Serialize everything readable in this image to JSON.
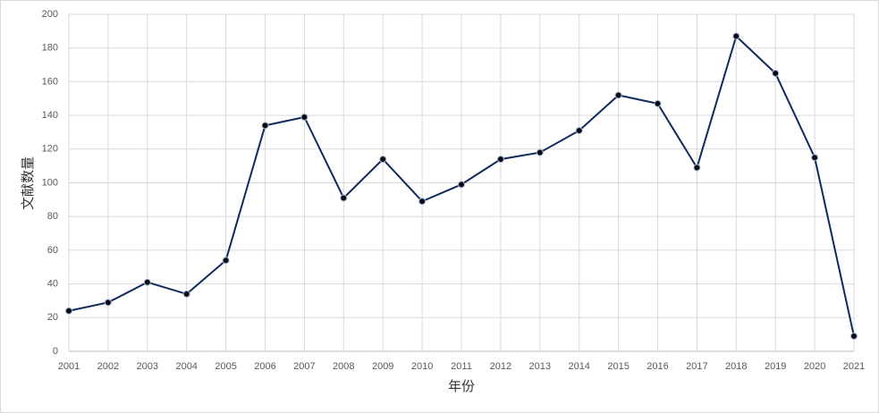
{
  "chart_data": {
    "type": "line",
    "x_label": "年份",
    "y_label": "文献数量",
    "x": [
      2001,
      2002,
      2003,
      2004,
      2005,
      2006,
      2007,
      2008,
      2009,
      2010,
      2011,
      2012,
      2013,
      2014,
      2015,
      2016,
      2017,
      2018,
      2019,
      2020,
      2021
    ],
    "series": [
      {
        "color": "#0f2a5c",
        "values": [
          24,
          29,
          41,
          34,
          54,
          134,
          139,
          91,
          114,
          89,
          99,
          114,
          118,
          131,
          152,
          147,
          109,
          187,
          165,
          115,
          9
        ]
      }
    ],
    "xlim": [
      2001,
      2021
    ],
    "xticks": [
      2001,
      2002,
      2003,
      2004,
      2005,
      2006,
      2007,
      2008,
      2009,
      2010,
      2011,
      2012,
      2013,
      2014,
      2015,
      2016,
      2017,
      2018,
      2019,
      2020,
      2021
    ],
    "ylim": [
      0,
      200
    ],
    "yticks": [
      0,
      20,
      40,
      60,
      80,
      100,
      120,
      140,
      160,
      180,
      200
    ],
    "grid": true
  }
}
